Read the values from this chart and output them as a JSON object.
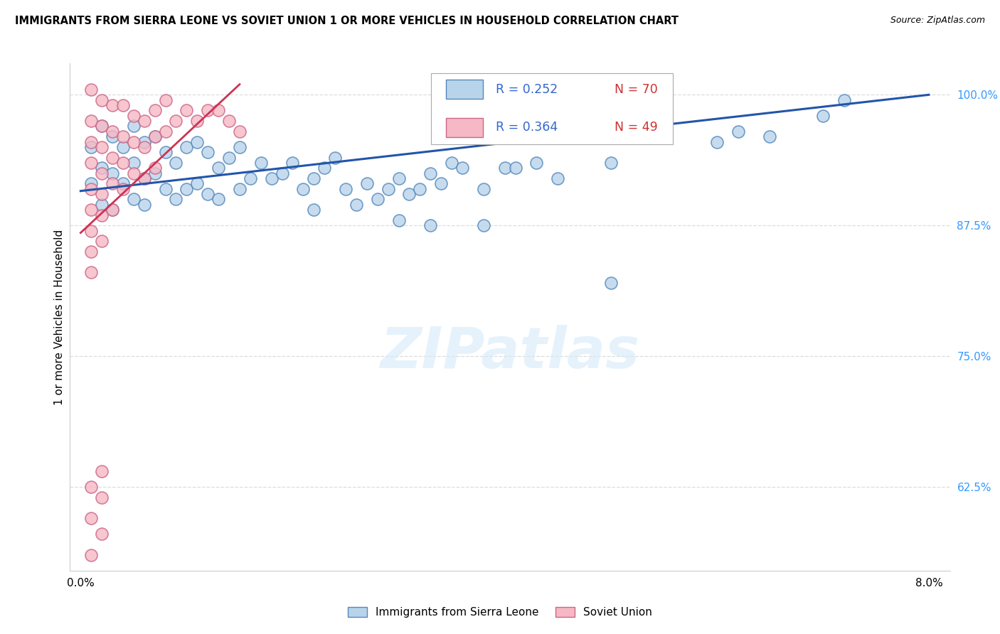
{
  "title": "IMMIGRANTS FROM SIERRA LEONE VS SOVIET UNION 1 OR MORE VEHICLES IN HOUSEHOLD CORRELATION CHART",
  "source": "Source: ZipAtlas.com",
  "ylabel": "1 or more Vehicles in Household",
  "yticks": [
    0.625,
    0.75,
    0.875,
    1.0
  ],
  "ytick_labels": [
    "62.5%",
    "75.0%",
    "87.5%",
    "100.0%"
  ],
  "xlim": [
    -0.001,
    0.082
  ],
  "ylim": [
    0.545,
    1.03
  ],
  "legend_blue_text1": "R = 0.252",
  "legend_blue_text2": "N = 70",
  "legend_pink_text1": "R = 0.364",
  "legend_pink_text2": "N = 49",
  "legend_label_blue": "Immigrants from Sierra Leone",
  "legend_label_pink": "Soviet Union",
  "blue_face": "#b8d4ea",
  "blue_edge": "#5588bb",
  "blue_line": "#2255aa",
  "pink_face": "#f5b8c4",
  "pink_edge": "#cc6688",
  "pink_line": "#cc3355",
  "blue_line_x": [
    0.0,
    0.08
  ],
  "blue_line_y": [
    0.908,
    1.0
  ],
  "pink_line_x": [
    0.0,
    0.015
  ],
  "pink_line_y": [
    0.868,
    1.01
  ],
  "watermark_text": "ZIPatlas",
  "grid_color": "#dddddd",
  "bg_color": "#ffffff",
  "blue_x": [
    0.001,
    0.001,
    0.002,
    0.002,
    0.002,
    0.003,
    0.003,
    0.003,
    0.004,
    0.004,
    0.005,
    0.005,
    0.005,
    0.006,
    0.006,
    0.006,
    0.007,
    0.007,
    0.008,
    0.008,
    0.009,
    0.009,
    0.01,
    0.01,
    0.011,
    0.011,
    0.012,
    0.012,
    0.013,
    0.013,
    0.014,
    0.015,
    0.015,
    0.016,
    0.017,
    0.018,
    0.019,
    0.02,
    0.021,
    0.022,
    0.022,
    0.023,
    0.024,
    0.025,
    0.026,
    0.027,
    0.028,
    0.029,
    0.03,
    0.031,
    0.032,
    0.033,
    0.034,
    0.035,
    0.036,
    0.038,
    0.04,
    0.041,
    0.043,
    0.045,
    0.05,
    0.06,
    0.062,
    0.065,
    0.07,
    0.072,
    0.03,
    0.033,
    0.038,
    0.05
  ],
  "blue_y": [
    0.95,
    0.915,
    0.97,
    0.93,
    0.895,
    0.96,
    0.925,
    0.89,
    0.95,
    0.915,
    0.97,
    0.935,
    0.9,
    0.955,
    0.92,
    0.895,
    0.96,
    0.925,
    0.945,
    0.91,
    0.935,
    0.9,
    0.95,
    0.91,
    0.955,
    0.915,
    0.945,
    0.905,
    0.93,
    0.9,
    0.94,
    0.95,
    0.91,
    0.92,
    0.935,
    0.92,
    0.925,
    0.935,
    0.91,
    0.92,
    0.89,
    0.93,
    0.94,
    0.91,
    0.895,
    0.915,
    0.9,
    0.91,
    0.92,
    0.905,
    0.91,
    0.925,
    0.915,
    0.935,
    0.93,
    0.91,
    0.93,
    0.93,
    0.935,
    0.92,
    0.935,
    0.955,
    0.965,
    0.96,
    0.98,
    0.995,
    0.88,
    0.875,
    0.875,
    0.82
  ],
  "pink_x": [
    0.001,
    0.001,
    0.001,
    0.001,
    0.001,
    0.001,
    0.001,
    0.001,
    0.001,
    0.002,
    0.002,
    0.002,
    0.002,
    0.002,
    0.002,
    0.002,
    0.003,
    0.003,
    0.003,
    0.003,
    0.003,
    0.004,
    0.004,
    0.004,
    0.004,
    0.005,
    0.005,
    0.005,
    0.006,
    0.006,
    0.006,
    0.007,
    0.007,
    0.007,
    0.008,
    0.008,
    0.009,
    0.01,
    0.011,
    0.012,
    0.013,
    0.014,
    0.015,
    0.001,
    0.001,
    0.001,
    0.002,
    0.002,
    0.002
  ],
  "pink_y": [
    1.005,
    0.975,
    0.955,
    0.935,
    0.91,
    0.89,
    0.87,
    0.85,
    0.83,
    0.995,
    0.97,
    0.95,
    0.925,
    0.905,
    0.885,
    0.86,
    0.99,
    0.965,
    0.94,
    0.915,
    0.89,
    0.99,
    0.96,
    0.935,
    0.91,
    0.98,
    0.955,
    0.925,
    0.975,
    0.95,
    0.92,
    0.985,
    0.96,
    0.93,
    0.995,
    0.965,
    0.975,
    0.985,
    0.975,
    0.985,
    0.985,
    0.975,
    0.965,
    0.625,
    0.595,
    0.56,
    0.64,
    0.615,
    0.58
  ]
}
